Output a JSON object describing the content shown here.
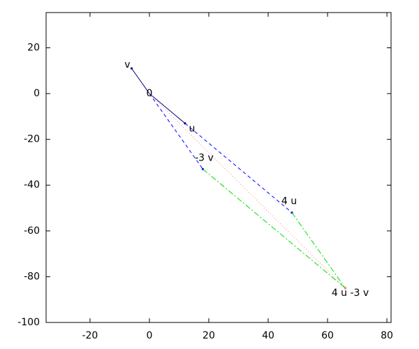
{
  "chart_data": {
    "type": "vector",
    "xlim": [
      -34.8,
      81.4
    ],
    "ylim": [
      -100,
      35.4
    ],
    "xticks": [
      -20,
      0,
      20,
      40,
      60,
      80
    ],
    "yticks": [
      20,
      0,
      -20,
      -40,
      -60,
      -80,
      -100
    ],
    "series": [
      {
        "color": "#000080",
        "style": "solid",
        "x": [
          0,
          12
        ],
        "y": [
          0,
          -13
        ]
      },
      {
        "color": "#000080",
        "style": "solid",
        "x": [
          0,
          -6
        ],
        "y": [
          0,
          11
        ]
      },
      {
        "color": "#0000ff",
        "style": "dashed",
        "x": [
          0,
          18
        ],
        "y": [
          0,
          -33
        ]
      },
      {
        "color": "#0000ff",
        "style": "dashed",
        "x": [
          12,
          48
        ],
        "y": [
          -13,
          -52
        ]
      },
      {
        "color": "#00dd00",
        "style": "dashdot",
        "x": [
          18,
          66
        ],
        "y": [
          -33,
          -85
        ]
      },
      {
        "color": "#00dd00",
        "style": "dashdot",
        "x": [
          48,
          66
        ],
        "y": [
          -52,
          -85
        ]
      },
      {
        "color": "#ff8080",
        "style": "dotted",
        "x": [
          0,
          66
        ],
        "y": [
          0,
          -85
        ]
      }
    ],
    "annotations": [
      {
        "text": "v",
        "x": -6,
        "y": 11
      },
      {
        "text": "0",
        "x": 0,
        "y": 0
      },
      {
        "text": "u",
        "x": 12,
        "y": -13
      },
      {
        "text": "-3 v",
        "x": 18,
        "y": -33
      },
      {
        "text": "4 u",
        "x": 48,
        "y": -52
      },
      {
        "text": "4 u -3 v",
        "x": 66,
        "y": -85
      }
    ]
  }
}
